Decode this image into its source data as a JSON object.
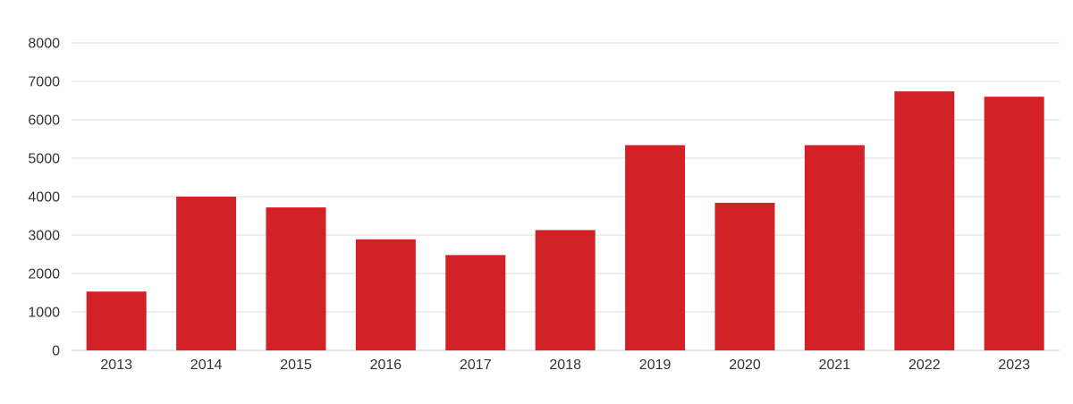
{
  "chart_data": {
    "type": "bar",
    "title": "",
    "xlabel": "",
    "ylabel": "",
    "categories": [
      "2013",
      "2014",
      "2015",
      "2016",
      "2017",
      "2018",
      "2019",
      "2020",
      "2021",
      "2022",
      "2023"
    ],
    "values": [
      1530,
      4000,
      3720,
      2890,
      2480,
      3130,
      5340,
      3840,
      5340,
      6740,
      6600
    ],
    "ylim": [
      0,
      8000
    ],
    "yticks": [
      0,
      1000,
      2000,
      3000,
      4000,
      5000,
      6000,
      7000,
      8000
    ],
    "grid": true,
    "legend": "none",
    "colors": {
      "bar": "#d22228",
      "grid": "#dddddd",
      "axis": "#cccccc",
      "text": "#333333"
    }
  }
}
